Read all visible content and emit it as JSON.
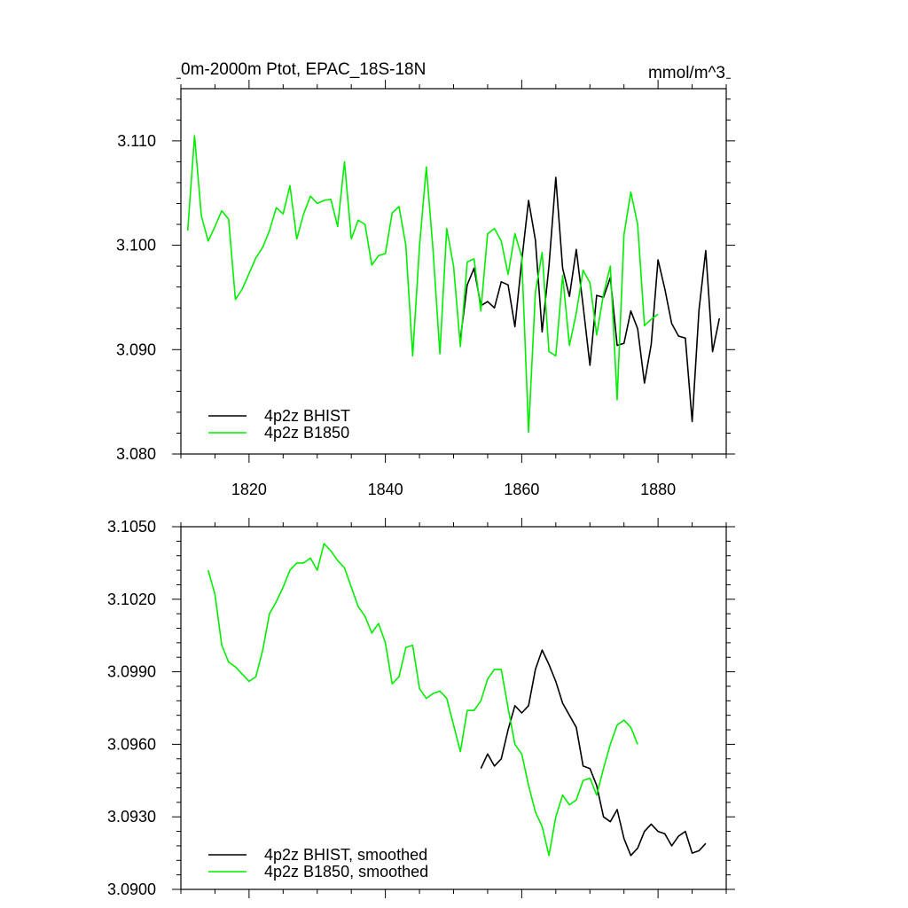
{
  "chart_data": [
    {
      "type": "line",
      "title": "0m-2000m Ptot, EPAC_18S-18N",
      "units_label": "mmol/m^3",
      "xlim": [
        1810,
        1890
      ],
      "ylim": [
        3.08,
        3.115
      ],
      "x_ticks": [
        1820,
        1840,
        1860,
        1880
      ],
      "x_tick_labels": [
        "1820",
        "1840",
        "1860",
        "1880"
      ],
      "y_ticks": [
        3.08,
        3.09,
        3.1,
        3.11
      ],
      "y_tick_labels": [
        "3.080",
        "3.090",
        "3.100",
        "3.110"
      ],
      "legend_position": "bottom-left",
      "series": [
        {
          "name": "4p2z BHIST",
          "color": "#000000",
          "x": [
            1851,
            1852,
            1853,
            1854,
            1855,
            1856,
            1857,
            1858,
            1859,
            1860,
            1861,
            1862,
            1863,
            1864,
            1865,
            1866,
            1867,
            1868,
            1869,
            1870,
            1871,
            1872,
            1873,
            1874,
            1875,
            1876,
            1877,
            1878,
            1879,
            1880,
            1881,
            1882,
            1883,
            1884,
            1885,
            1886,
            1887,
            1888,
            1889
          ],
          "y": [
            3.091,
            3.0962,
            3.0978,
            3.0942,
            3.0946,
            3.094,
            3.0965,
            3.0962,
            3.0922,
            3.0985,
            3.1043,
            3.1005,
            3.0917,
            3.098,
            3.1065,
            3.0978,
            3.0951,
            3.0996,
            3.0942,
            3.0885,
            3.0952,
            3.095,
            3.0969,
            3.0904,
            3.0906,
            3.0937,
            3.092,
            3.0868,
            3.0905,
            3.0986,
            3.0958,
            3.0925,
            3.0913,
            3.0911,
            3.0831,
            3.0938,
            3.0995,
            3.0898,
            3.093
          ]
        },
        {
          "name": "4p2z B1850",
          "color": "#00ee00",
          "x": [
            1811,
            1812,
            1813,
            1814,
            1815,
            1816,
            1817,
            1818,
            1819,
            1820,
            1821,
            1822,
            1823,
            1824,
            1825,
            1826,
            1827,
            1828,
            1829,
            1830,
            1831,
            1832,
            1833,
            1834,
            1835,
            1836,
            1837,
            1838,
            1839,
            1840,
            1841,
            1842,
            1843,
            1844,
            1845,
            1846,
            1847,
            1848,
            1849,
            1850,
            1851,
            1852,
            1853,
            1854,
            1855,
            1856,
            1857,
            1858,
            1859,
            1860,
            1861,
            1862,
            1863,
            1864,
            1865,
            1866,
            1867,
            1868,
            1869,
            1870,
            1871,
            1872,
            1873,
            1874,
            1875,
            1876,
            1877,
            1878,
            1879,
            1880
          ],
          "y": [
            3.1014,
            3.1105,
            3.1028,
            3.1004,
            3.1018,
            3.1033,
            3.1025,
            3.0948,
            3.0958,
            3.0973,
            3.0988,
            3.0998,
            3.1014,
            3.1036,
            3.103,
            3.1057,
            3.1006,
            3.103,
            3.1047,
            3.104,
            3.1043,
            3.1044,
            3.1018,
            3.108,
            3.1006,
            3.1024,
            3.102,
            3.0981,
            3.099,
            3.0992,
            3.1031,
            3.1037,
            3.1,
            3.0894,
            3.0999,
            3.1075,
            3.0995,
            3.0896,
            3.1016,
            3.098,
            3.0903,
            3.0984,
            3.0987,
            3.0937,
            3.1011,
            3.1016,
            3.1004,
            3.0972,
            3.1011,
            3.0989,
            3.0821,
            3.0955,
            3.0993,
            3.0898,
            3.0894,
            3.0971,
            3.0904,
            3.0935,
            3.0976,
            3.0964,
            3.0914,
            3.0953,
            3.098,
            3.0852,
            3.101,
            3.1051,
            3.102,
            3.0923,
            3.0929,
            3.0934
          ]
        }
      ]
    },
    {
      "type": "line",
      "title": "",
      "xlim": [
        1810,
        1890
      ],
      "ylim": [
        3.09,
        3.105
      ],
      "x_ticks": [
        1820,
        1840,
        1860,
        1880
      ],
      "x_tick_labels": [],
      "y_ticks": [
        3.09,
        3.093,
        3.096,
        3.099,
        3.102,
        3.105
      ],
      "y_tick_labels": [
        "3.0900",
        "3.0930",
        "3.0960",
        "3.0990",
        "3.1020",
        "3.1050"
      ],
      "legend_position": "bottom-left",
      "series": [
        {
          "name": "4p2z BHIST, smoothed",
          "color": "#000000",
          "x": [
            1854,
            1855,
            1856,
            1857,
            1858,
            1859,
            1860,
            1861,
            1862,
            1863,
            1864,
            1865,
            1866,
            1867,
            1868,
            1869,
            1870,
            1871,
            1872,
            1873,
            1874,
            1875,
            1876,
            1877,
            1878,
            1879,
            1880,
            1881,
            1882,
            1883,
            1884,
            1885,
            1886,
            1887
          ],
          "y": [
            3.095,
            3.0956,
            3.0951,
            3.0954,
            3.0966,
            3.0976,
            3.0973,
            3.0976,
            3.0991,
            3.0999,
            3.0993,
            3.0986,
            3.0977,
            3.0972,
            3.0967,
            3.0951,
            3.095,
            3.0943,
            3.093,
            3.0928,
            3.0933,
            3.0921,
            3.0914,
            3.0917,
            3.0924,
            3.0927,
            3.0924,
            3.0923,
            3.0918,
            3.0922,
            3.0924,
            3.0915,
            3.0916,
            3.0919
          ]
        },
        {
          "name": "4p2z B1850, smoothed",
          "color": "#00ee00",
          "x": [
            1814,
            1815,
            1816,
            1817,
            1818,
            1819,
            1820,
            1821,
            1822,
            1823,
            1824,
            1825,
            1826,
            1827,
            1828,
            1829,
            1830,
            1831,
            1832,
            1833,
            1834,
            1835,
            1836,
            1837,
            1838,
            1839,
            1840,
            1841,
            1842,
            1843,
            1844,
            1845,
            1846,
            1847,
            1848,
            1849,
            1850,
            1851,
            1852,
            1853,
            1854,
            1855,
            1856,
            1857,
            1858,
            1859,
            1860,
            1861,
            1862,
            1863,
            1864,
            1865,
            1866,
            1867,
            1868,
            1869,
            1870,
            1871,
            1872,
            1873,
            1874,
            1875,
            1876,
            1877
          ],
          "y": [
            3.1032,
            3.1022,
            3.1001,
            3.0994,
            3.0992,
            3.0989,
            3.0986,
            3.0988,
            3.0999,
            3.1014,
            3.1019,
            3.1025,
            3.1032,
            3.1035,
            3.1035,
            3.1037,
            3.1032,
            3.1043,
            3.104,
            3.1036,
            3.1033,
            3.1025,
            3.1017,
            3.1013,
            3.1006,
            3.101,
            3.1002,
            3.0985,
            3.0988,
            3.1,
            3.1001,
            3.0983,
            3.0979,
            3.0981,
            3.0982,
            3.0979,
            3.0968,
            3.0957,
            3.0974,
            3.0974,
            3.0978,
            3.0987,
            3.0991,
            3.0991,
            3.0975,
            3.096,
            3.0956,
            3.0943,
            3.0932,
            3.0926,
            3.0914,
            3.093,
            3.0939,
            3.0935,
            3.0937,
            3.0945,
            3.0946,
            3.0939,
            3.095,
            3.096,
            3.0968,
            3.097,
            3.0967,
            3.096
          ]
        }
      ]
    }
  ]
}
